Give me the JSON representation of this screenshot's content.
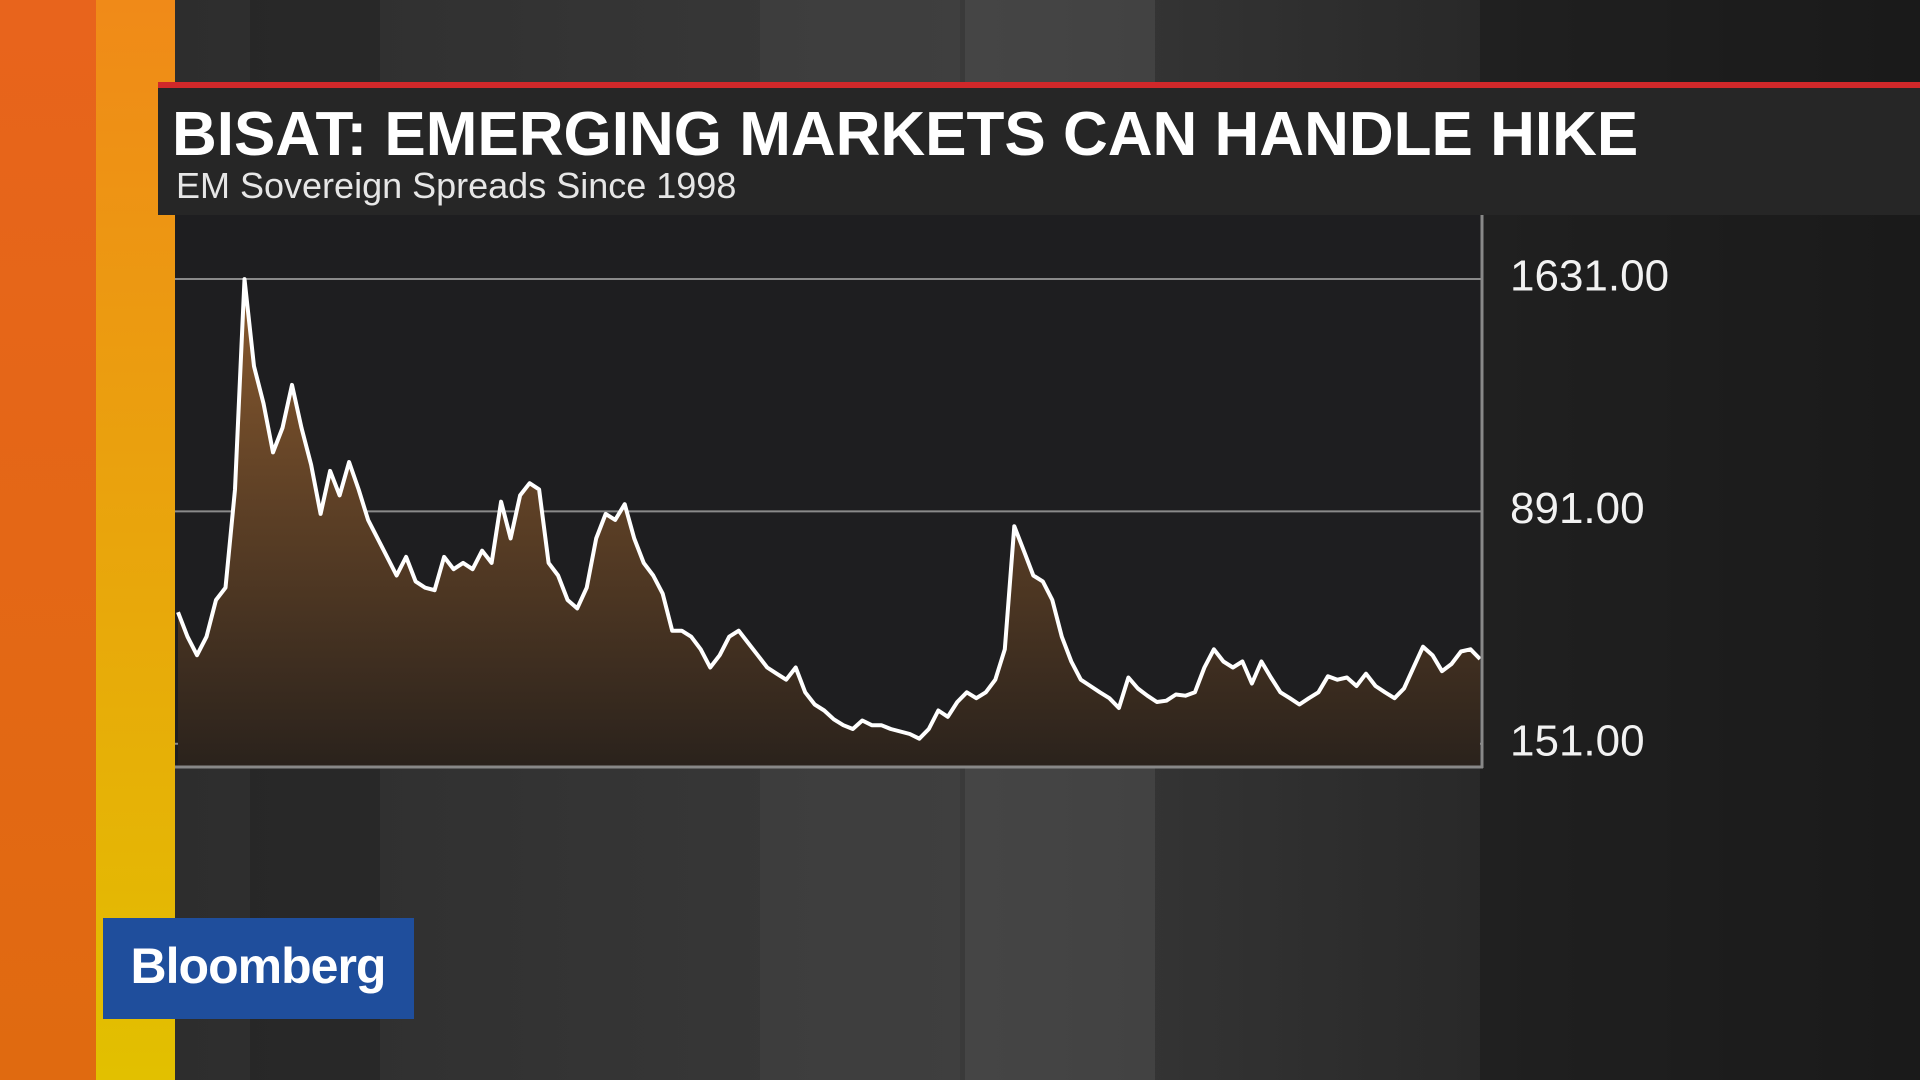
{
  "chart_data": {
    "type": "area",
    "title": "BISAT: EMERGING MARKETS CAN HANDLE HIKE",
    "subtitle": "EM Sovereign Spreads Since 1998",
    "color": "#ffffff",
    "ylim": [
      77,
      1835
    ],
    "yticks": [
      {
        "value": 151,
        "label": "151.00"
      },
      {
        "value": 891,
        "label": "891.00"
      },
      {
        "value": 1631,
        "label": "1631.00"
      }
    ],
    "grid": true,
    "values": [
      570,
      492,
      433,
      492,
      609,
      648,
      961,
      1631,
      1353,
      1235,
      1079,
      1157,
      1294,
      1157,
      1040,
      883,
      1020,
      942,
      1048,
      961,
      864,
      805,
      746,
      687,
      746,
      668,
      648,
      640,
      746,
      707,
      727,
      707,
      766,
      727,
      922,
      805,
      942,
      981,
      961,
      727,
      687,
      609,
      582,
      648,
      805,
      883,
      864,
      914,
      805,
      727,
      687,
      629,
      511,
      511,
      492,
      452,
      394,
      433,
      492,
      511,
      472,
      433,
      394,
      374,
      355,
      394,
      315,
      276,
      257,
      229,
      210,
      198,
      225,
      210,
      210,
      198,
      190,
      182,
      167,
      198,
      257,
      237,
      284,
      315,
      296,
      315,
      355,
      452,
      844,
      766,
      687,
      668,
      609,
      492,
      413,
      355,
      335,
      315,
      296,
      265,
      362,
      327,
      304,
      284,
      288,
      308,
      304,
      315,
      394,
      452,
      413,
      394,
      413,
      343,
      413,
      362,
      315,
      296,
      276,
      296,
      315,
      366,
      355,
      362,
      335,
      374,
      335,
      315,
      296,
      327,
      394,
      460,
      433,
      382,
      405,
      445,
      452,
      421
    ]
  },
  "logo": "Bloomberg"
}
